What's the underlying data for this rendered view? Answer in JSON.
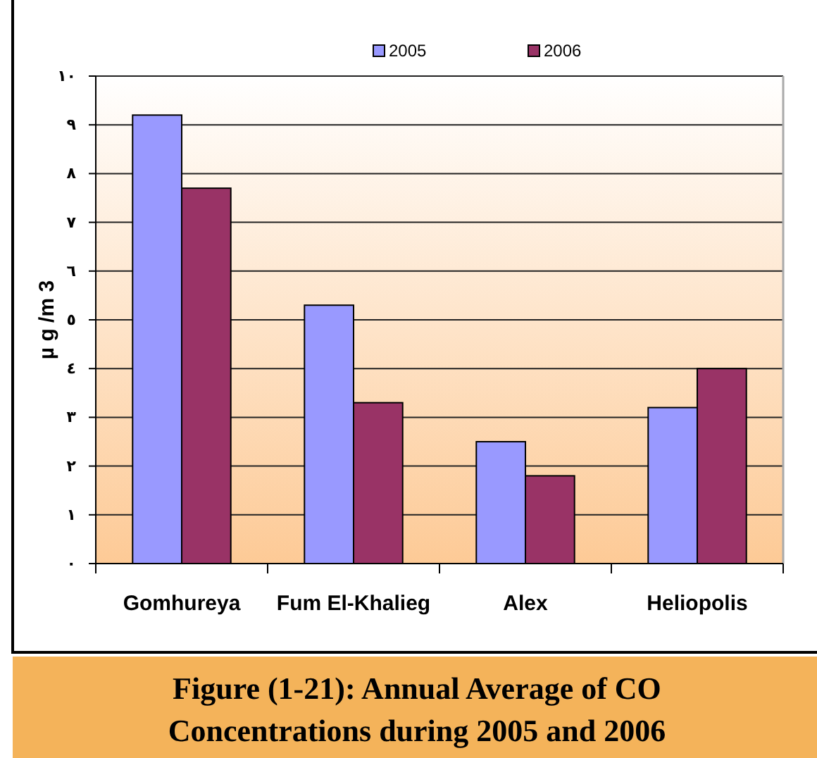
{
  "chart_data": {
    "type": "bar",
    "title": "Figure (1-21): Annual Average of CO Concentrations during 2005 and 2006",
    "ylabel": "µ g /m 3",
    "categories": [
      "Gomhureya",
      "Fum El-Khalieg",
      "Alex",
      "Heliopolis"
    ],
    "series": [
      {
        "name": "2005",
        "color": "#9999ff",
        "values": [
          9.2,
          5.3,
          2.5,
          3.2
        ]
      },
      {
        "name": "2006",
        "color": "#993366",
        "values": [
          7.7,
          3.3,
          1.8,
          4.0
        ]
      }
    ],
    "ylim": [
      0,
      10
    ],
    "yticks": [
      {
        "value": 0,
        "label": "٠"
      },
      {
        "value": 1,
        "label": "١"
      },
      {
        "value": 2,
        "label": "٢"
      },
      {
        "value": 3,
        "label": "٣"
      },
      {
        "value": 4,
        "label": "٤"
      },
      {
        "value": 5,
        "label": "٥"
      },
      {
        "value": 6,
        "label": "٦"
      },
      {
        "value": 7,
        "label": "٧"
      },
      {
        "value": 8,
        "label": "٨"
      },
      {
        "value": 9,
        "label": "٩"
      },
      {
        "value": 10,
        "label": "١٠"
      }
    ],
    "grid": "y",
    "legend": "top"
  }
}
